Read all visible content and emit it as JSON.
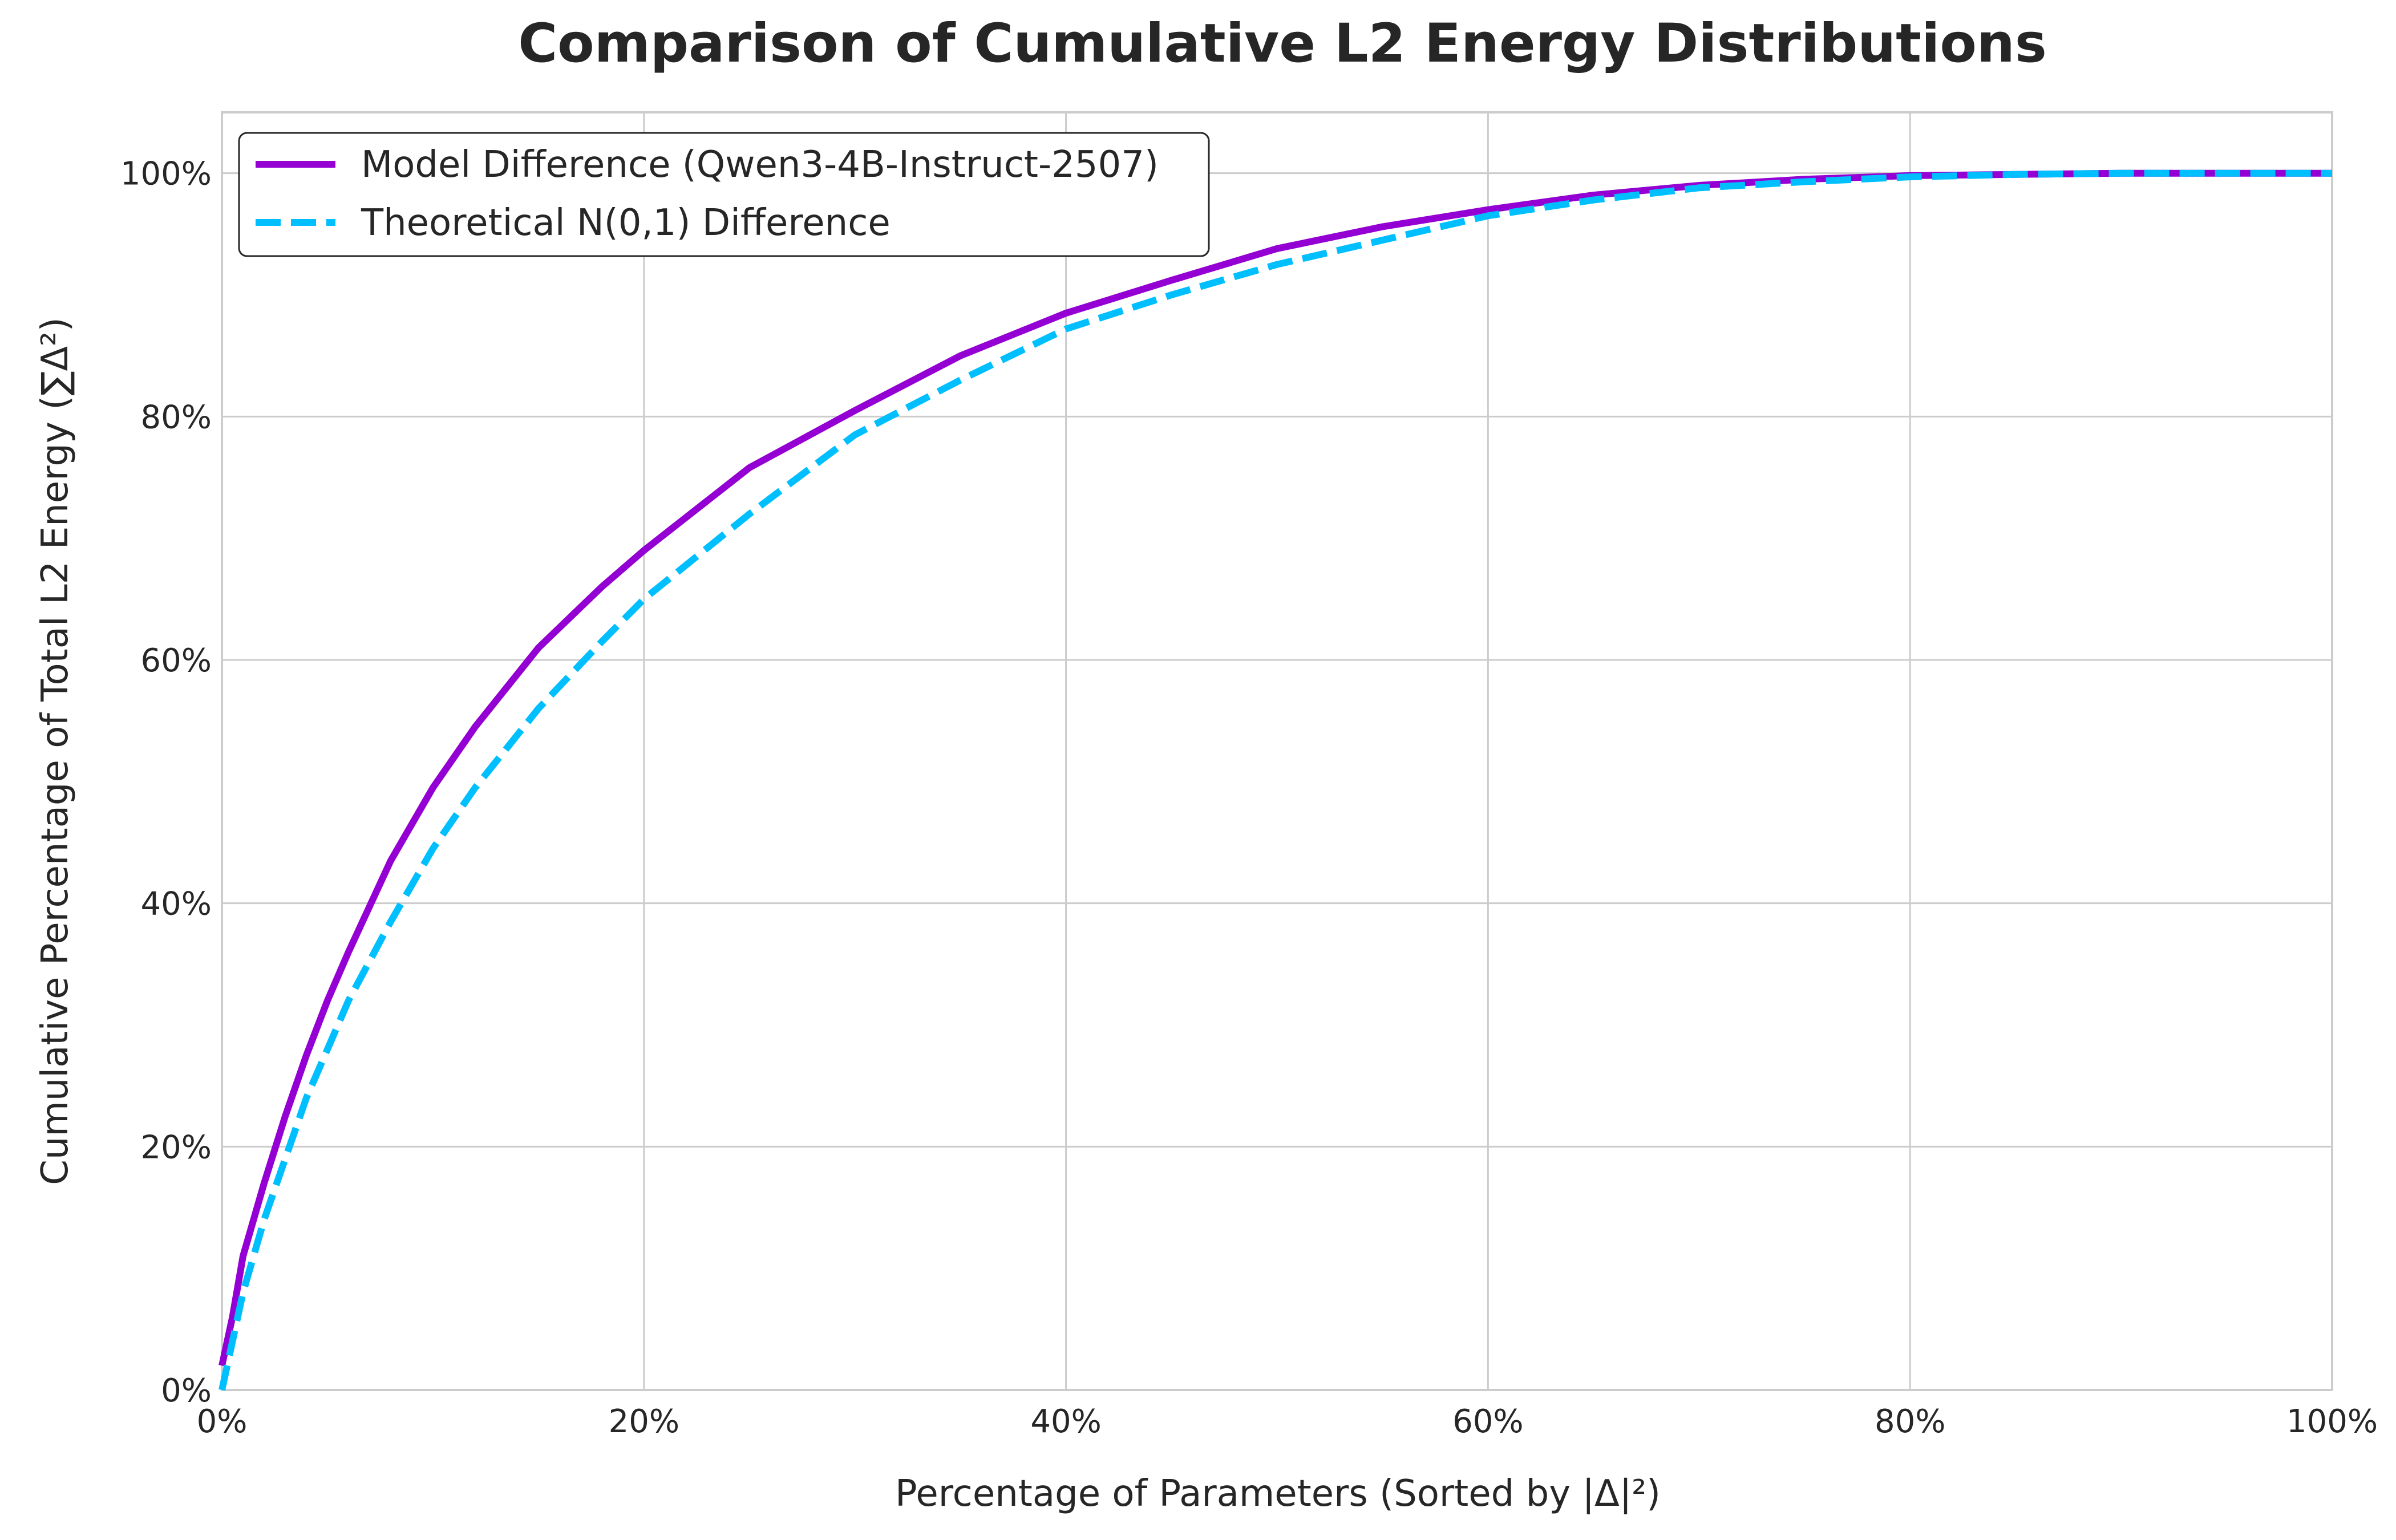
{
  "chart_data": {
    "type": "line",
    "title": "Comparison of Cumulative L2 Energy Distributions",
    "xlabel": "Percentage of Parameters (Sorted by |Δ|²)",
    "ylabel": "Cumulative Percentage of Total L2 Energy (∑Δ²)",
    "xlim": [
      0,
      100
    ],
    "ylim": [
      0,
      105
    ],
    "x_ticks": [
      "0%",
      "20%",
      "40%",
      "60%",
      "80%",
      "100%"
    ],
    "y_ticks": [
      "0%",
      "20%",
      "40%",
      "60%",
      "80%",
      "100%"
    ],
    "grid": true,
    "legend_position": "top-left",
    "series": [
      {
        "name": "Model Difference (Qwen3-4B-Instruct-2507)",
        "color": "#9400d3",
        "style": "solid",
        "x": [
          0,
          0.5,
          1,
          2,
          3,
          4,
          5,
          6,
          8,
          10,
          12,
          15,
          18,
          20,
          25,
          30,
          35,
          40,
          45,
          50,
          55,
          60,
          65,
          70,
          75,
          80,
          85,
          90,
          95,
          100
        ],
        "values": [
          2,
          6,
          11,
          17,
          22.5,
          27.5,
          32,
          36,
          43.5,
          49.5,
          54.5,
          61,
          66,
          69,
          75.8,
          80.5,
          85,
          88.5,
          91.2,
          93.8,
          95.6,
          97,
          98.2,
          99.0,
          99.5,
          99.8,
          99.9,
          100,
          100,
          100
        ]
      },
      {
        "name": "Theoretical N(0,1) Difference",
        "color": "#00bfff",
        "style": "dashed",
        "x": [
          0,
          0.5,
          1,
          2,
          3,
          4,
          5,
          6,
          8,
          10,
          12,
          15,
          18,
          20,
          25,
          30,
          35,
          40,
          45,
          50,
          55,
          60,
          65,
          70,
          75,
          80,
          85,
          90,
          95,
          100
        ],
        "values": [
          0,
          4,
          8,
          14,
          19,
          24,
          28,
          32,
          38.5,
          44.5,
          49.5,
          56,
          61.5,
          65,
          72,
          78.5,
          83,
          87.2,
          90,
          92.5,
          94.5,
          96.5,
          97.8,
          98.8,
          99.3,
          99.7,
          99.9,
          100,
          100,
          100
        ]
      }
    ]
  }
}
